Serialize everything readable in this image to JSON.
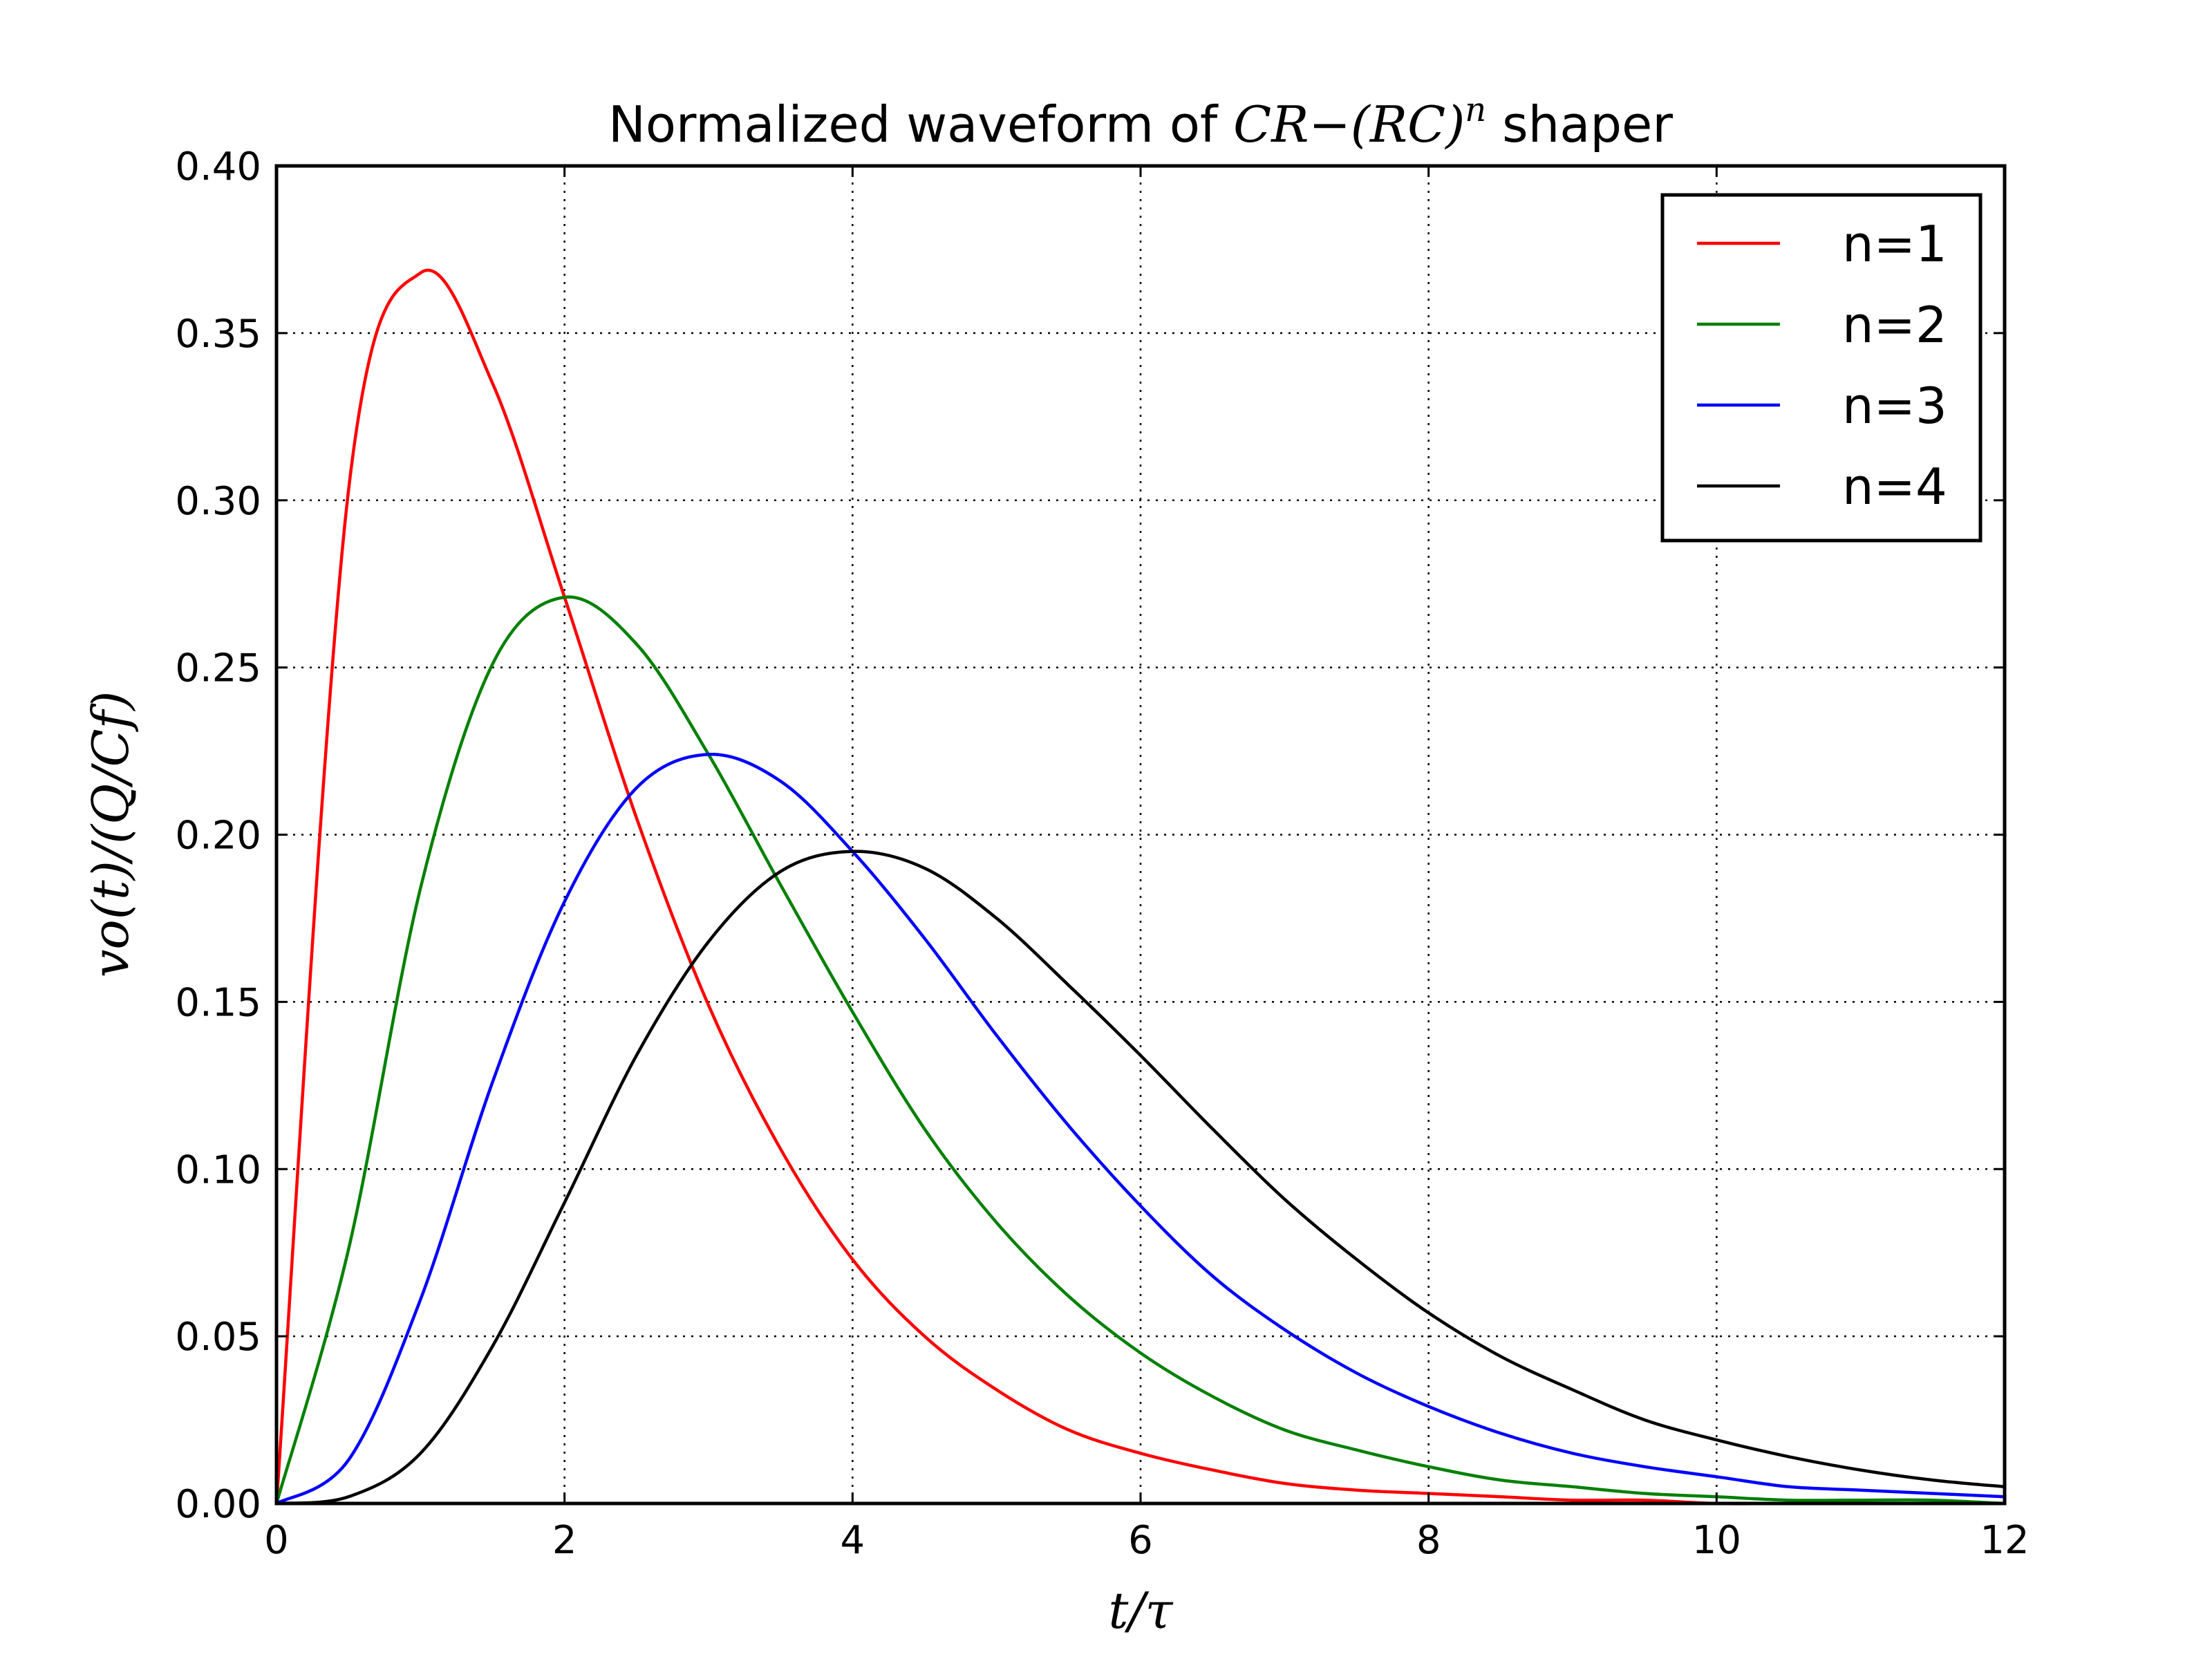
{
  "chart_data": {
    "type": "line",
    "title": {
      "prefix": "Normalized waveform of ",
      "math": "CR−(RC)",
      "math_exp": "n",
      "suffix": " shaper"
    },
    "xlabel": "t/τ",
    "ylabel": "vo(t)/(Q/Cf)",
    "xlim": [
      0,
      12
    ],
    "ylim": [
      0,
      0.4
    ],
    "xticks": [
      0,
      2,
      4,
      6,
      8,
      10,
      12
    ],
    "xtick_labels": [
      "0",
      "2",
      "4",
      "6",
      "8",
      "10",
      "12"
    ],
    "yticks": [
      0.0,
      0.05,
      0.1,
      0.15,
      0.2,
      0.25,
      0.3,
      0.35,
      0.4
    ],
    "ytick_labels": [
      "0.00",
      "0.05",
      "0.10",
      "0.15",
      "0.20",
      "0.25",
      "0.30",
      "0.35",
      "0.40"
    ],
    "grid": true,
    "legend_position": "top-right",
    "x": [
      0,
      0.5,
      1,
      1.5,
      2,
      2.5,
      3,
      3.5,
      4,
      4.5,
      5,
      5.5,
      6,
      6.5,
      7,
      7.5,
      8,
      8.5,
      9,
      9.5,
      10,
      10.5,
      11,
      11.5,
      12
    ],
    "series": [
      {
        "name": "n=1",
        "color": "#ff0000",
        "values": [
          0.0,
          0.303,
          0.368,
          0.335,
          0.271,
          0.205,
          0.149,
          0.106,
          0.073,
          0.05,
          0.034,
          0.022,
          0.015,
          0.01,
          0.006,
          0.004,
          0.003,
          0.002,
          0.001,
          0.001,
          0.0,
          0.0,
          0.0,
          0.0,
          0.0
        ]
      },
      {
        "name": "n=2",
        "color": "#008000",
        "values": [
          0.0,
          0.076,
          0.184,
          0.251,
          0.271,
          0.257,
          0.224,
          0.185,
          0.147,
          0.112,
          0.084,
          0.062,
          0.045,
          0.032,
          0.022,
          0.016,
          0.011,
          0.007,
          0.005,
          0.003,
          0.002,
          0.001,
          0.001,
          0.001,
          0.0
        ]
      },
      {
        "name": "n=3",
        "color": "#0000ff",
        "values": [
          0.0,
          0.013,
          0.061,
          0.126,
          0.18,
          0.214,
          0.224,
          0.216,
          0.195,
          0.169,
          0.14,
          0.113,
          0.089,
          0.068,
          0.052,
          0.039,
          0.029,
          0.021,
          0.015,
          0.011,
          0.008,
          0.005,
          0.004,
          0.003,
          0.002
        ]
      },
      {
        "name": "n=4",
        "color": "#000000",
        "values": [
          0.0,
          0.002,
          0.015,
          0.047,
          0.09,
          0.134,
          0.168,
          0.189,
          0.195,
          0.19,
          0.175,
          0.155,
          0.134,
          0.112,
          0.091,
          0.073,
          0.057,
          0.044,
          0.034,
          0.025,
          0.019,
          0.014,
          0.01,
          0.007,
          0.005
        ]
      }
    ]
  }
}
